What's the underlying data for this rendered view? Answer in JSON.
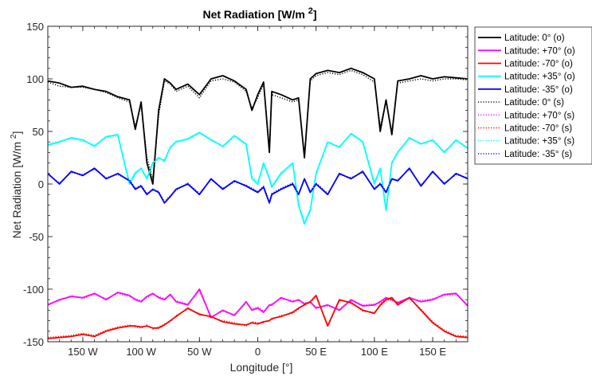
{
  "chart_data": {
    "type": "line",
    "title": "Net Radiation [W/m ",
    "title_sup": "2",
    "title_end": "]",
    "xlabel": "Longitude [°]",
    "ylabel": "Net Radiation [W/m ",
    "ylabel_sup": "2",
    "ylabel_end": "]",
    "xlim": [
      -180,
      180
    ],
    "ylim": [
      -150,
      150
    ],
    "x_ticks": [
      -150,
      -100,
      -50,
      0,
      50,
      100,
      150
    ],
    "x_tick_labels": [
      "150 W",
      "100 W",
      "50 W",
      "0",
      "50 E",
      "100 E",
      "150 E"
    ],
    "y_ticks": [
      -150,
      -100,
      -50,
      0,
      50,
      100,
      150
    ],
    "y_tick_labels": [
      "-150",
      "-100",
      "-50",
      "0",
      "50",
      "100",
      "150"
    ],
    "grid": false,
    "legend_position": "outside-top-right",
    "x": [
      -180,
      -170,
      -160,
      -150,
      -140,
      -130,
      -120,
      -110,
      -105,
      -100,
      -95,
      -90,
      -85,
      -80,
      -75,
      -70,
      -60,
      -50,
      -40,
      -30,
      -20,
      -10,
      -5,
      0,
      5,
      10,
      12,
      20,
      30,
      35,
      40,
      45,
      50,
      60,
      70,
      80,
      90,
      100,
      105,
      110,
      115,
      120,
      130,
      140,
      150,
      160,
      170,
      180
    ],
    "series": [
      {
        "name": "Latitude: 0° (o)",
        "color": "#000000",
        "style": "solid",
        "values": [
          98,
          96,
          92,
          93,
          90,
          88,
          83,
          80,
          52,
          78,
          20,
          0,
          70,
          100,
          96,
          90,
          95,
          85,
          100,
          103,
          98,
          90,
          70,
          85,
          97,
          30,
          88,
          85,
          80,
          82,
          25,
          100,
          105,
          108,
          106,
          110,
          106,
          100,
          50,
          80,
          47,
          98,
          100,
          103,
          100,
          102,
          101,
          100
        ]
      },
      {
        "name": "Latitude: +70° (o)",
        "color": "#ff00ff",
        "style": "solid",
        "values": [
          -115,
          -110,
          -107,
          -108,
          -104,
          -110,
          -103,
          -106,
          -110,
          -112,
          -107,
          -104,
          -108,
          -110,
          -105,
          -112,
          -115,
          -100,
          -127,
          -120,
          -125,
          -112,
          -120,
          -118,
          -122,
          -115,
          -115,
          -108,
          -112,
          -110,
          -114,
          -112,
          -118,
          -115,
          -120,
          -110,
          -116,
          -115,
          -112,
          -108,
          -110,
          -113,
          -108,
          -112,
          -110,
          -105,
          -104,
          -116
        ]
      },
      {
        "name": "Latitude: -70° (o)",
        "color": "#ff0000",
        "style": "solid",
        "values": [
          -147,
          -146,
          -145,
          -143,
          -145,
          -140,
          -137,
          -135,
          -135,
          -136,
          -135,
          -137,
          -137,
          -134,
          -130,
          -126,
          -118,
          -124,
          -126,
          -131,
          -133,
          -134,
          -132,
          -133,
          -131,
          -130,
          -128,
          -126,
          -122,
          -118,
          -115,
          -112,
          -106,
          -135,
          -110,
          -113,
          -120,
          -123,
          -115,
          -110,
          -108,
          -115,
          -108,
          -120,
          -132,
          -140,
          -145,
          -146
        ]
      },
      {
        "name": "Latitude: +35° (o)",
        "color": "#00ffff",
        "style": "solid",
        "values": [
          37,
          40,
          44,
          42,
          36,
          45,
          47,
          0,
          10,
          15,
          5,
          20,
          25,
          22,
          35,
          40,
          43,
          49,
          42,
          36,
          46,
          38,
          5,
          0,
          20,
          5,
          -3,
          10,
          20,
          -20,
          -38,
          -25,
          10,
          40,
          35,
          48,
          40,
          0,
          15,
          -25,
          20,
          30,
          44,
          38,
          42,
          30,
          42,
          34
        ]
      },
      {
        "name": "Latitude: -35° (o)",
        "color": "#0000ff",
        "style": "solid",
        "values": [
          10,
          0,
          12,
          8,
          15,
          5,
          10,
          3,
          -5,
          -2,
          -10,
          -5,
          -8,
          -18,
          -12,
          -5,
          0,
          -10,
          5,
          -5,
          3,
          -2,
          -5,
          -8,
          -3,
          -18,
          -10,
          -5,
          0,
          -10,
          5,
          -8,
          0,
          -10,
          10,
          5,
          12,
          -5,
          0,
          -8,
          5,
          3,
          15,
          -2,
          12,
          0,
          10,
          5
        ]
      },
      {
        "name": "Latitude: 0° (s)",
        "color": "#000000",
        "style": "dotted",
        "values": [
          97,
          93,
          92,
          92,
          90,
          87,
          82,
          78,
          55,
          75,
          25,
          5,
          65,
          98,
          95,
          88,
          93,
          82,
          98,
          100,
          97,
          88,
          72,
          82,
          95,
          35,
          85,
          82,
          78,
          80,
          28,
          98,
          103,
          106,
          104,
          108,
          104,
          97,
          55,
          78,
          50,
          96,
          98,
          100,
          98,
          100,
          100,
          99
        ]
      },
      {
        "name": "Latitude: +70° (s)",
        "color": "#ff00ff",
        "style": "dotted",
        "values": [
          -114,
          -111,
          -106,
          -109,
          -105,
          -109,
          -104,
          -107,
          -109,
          -111,
          -108,
          -105,
          -107,
          -109,
          -106,
          -111,
          -114,
          -102,
          -126,
          -121,
          -124,
          -113,
          -119,
          -117,
          -121,
          -116,
          -114,
          -109,
          -111,
          -111,
          -113,
          -113,
          -117,
          -116,
          -119,
          -111,
          -115,
          -114,
          -113,
          -109,
          -111,
          -112,
          -109,
          -111,
          -109,
          -106,
          -105,
          -115
        ]
      },
      {
        "name": "Latitude: -70° (s)",
        "color": "#ff0000",
        "style": "dotted",
        "values": [
          -146,
          -145,
          -144,
          -142,
          -144,
          -139,
          -136,
          -134,
          -136,
          -137,
          -134,
          -138,
          -136,
          -133,
          -131,
          -125,
          -119,
          -123,
          -127,
          -130,
          -132,
          -135,
          -131,
          -132,
          -132,
          -129,
          -129,
          -125,
          -123,
          -119,
          -114,
          -113,
          -107,
          -134,
          -111,
          -112,
          -121,
          -122,
          -116,
          -111,
          -109,
          -114,
          -109,
          -119,
          -131,
          -139,
          -144,
          -145
        ]
      },
      {
        "name": "Latitude: +35° (s)",
        "color": "#00ffff",
        "style": "dotted",
        "values": [
          38,
          41,
          43,
          41,
          37,
          44,
          46,
          2,
          12,
          14,
          7,
          19,
          24,
          23,
          34,
          41,
          42,
          48,
          43,
          35,
          45,
          37,
          7,
          2,
          19,
          7,
          -2,
          11,
          19,
          -18,
          -36,
          -24,
          11,
          39,
          36,
          47,
          41,
          2,
          14,
          -23,
          19,
          31,
          43,
          39,
          41,
          31,
          41,
          35
        ]
      },
      {
        "name": "Latitude: -35° (s)",
        "color": "#0000ff",
        "style": "dotted",
        "values": [
          9,
          1,
          11,
          9,
          14,
          6,
          9,
          4,
          -4,
          -1,
          -9,
          -6,
          -7,
          -17,
          -11,
          -6,
          1,
          -9,
          4,
          -4,
          2,
          -1,
          -4,
          -7,
          -2,
          -17,
          -9,
          -4,
          1,
          -9,
          4,
          -7,
          1,
          -9,
          9,
          6,
          11,
          -4,
          1,
          -7,
          4,
          4,
          14,
          -1,
          11,
          1,
          9,
          6
        ]
      }
    ]
  }
}
